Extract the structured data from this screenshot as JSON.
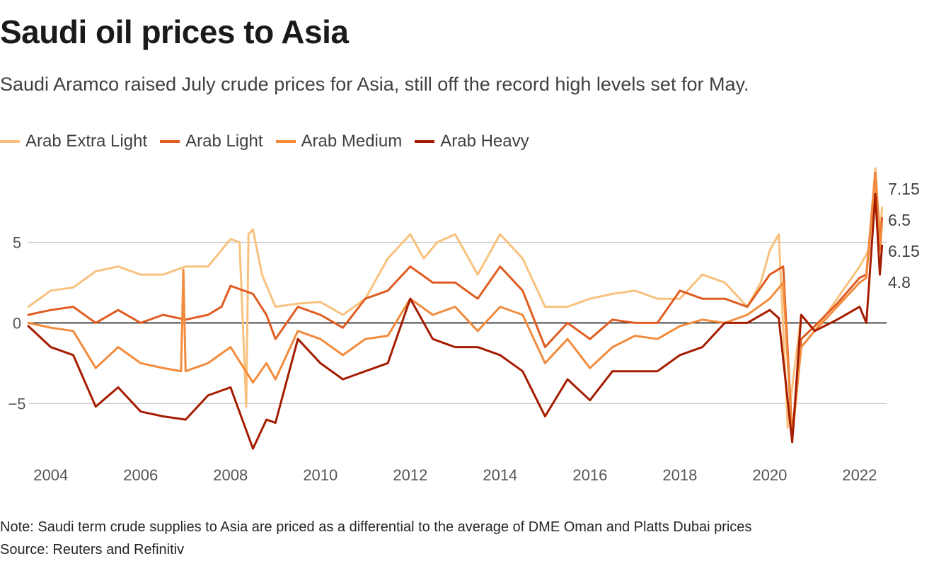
{
  "title": "Saudi oil prices to Asia",
  "subtitle": "Saudi Aramco raised July crude prices for Asia, still off the record high levels set for May.",
  "note": "Note: Saudi term crude supplies to Asia are priced as a differential to the average of DME Oman and Platts Dubai prices",
  "source": "Source: Reuters and Refinitiv",
  "chart_data": {
    "type": "line",
    "title": "Saudi oil prices to Asia",
    "xlabel": "",
    "ylabel": "",
    "xlim": [
      2003.5,
      2022.6
    ],
    "ylim": [
      -8.5,
      9.5
    ],
    "x_ticks": [
      2004,
      2006,
      2008,
      2010,
      2012,
      2014,
      2016,
      2018,
      2020,
      2022
    ],
    "x_tick_labels": [
      "2004",
      "2006",
      "2008",
      "2010",
      "2012",
      "2014",
      "2016",
      "2018",
      "2020",
      "2022"
    ],
    "y_ticks": [
      -5,
      0,
      5
    ],
    "y_tick_labels": [
      "−5",
      "0",
      "5"
    ],
    "grid": true,
    "legend_position": "top-left",
    "end_labels": [
      "7.15",
      "6.5",
      "6.15",
      "4.8"
    ],
    "series": [
      {
        "name": "Arab Extra Light",
        "color": "#f8c27e",
        "x": [
          2003.5,
          2004.0,
          2004.5,
          2005.0,
          2005.5,
          2006.0,
          2006.5,
          2007.0,
          2007.5,
          2008.0,
          2008.2,
          2008.35,
          2008.4,
          2008.5,
          2008.7,
          2009.0,
          2009.5,
          2010.0,
          2010.5,
          2011.0,
          2011.5,
          2012.0,
          2012.3,
          2012.6,
          2013.0,
          2013.5,
          2014.0,
          2014.5,
          2015.0,
          2015.5,
          2016.0,
          2016.5,
          2017.0,
          2017.5,
          2018.0,
          2018.5,
          2019.0,
          2019.5,
          2019.8,
          2020.0,
          2020.2,
          2020.4,
          2020.5,
          2020.7,
          2021.0,
          2021.5,
          2022.0,
          2022.2,
          2022.35,
          2022.45,
          2022.5
        ],
        "values": [
          1.0,
          2.0,
          2.2,
          3.2,
          3.5,
          3.0,
          3.0,
          3.5,
          3.5,
          5.2,
          5.0,
          -5.2,
          5.5,
          5.8,
          3.0,
          1.0,
          1.2,
          1.3,
          0.5,
          1.5,
          4.0,
          5.5,
          4.0,
          5.0,
          5.5,
          3.0,
          5.5,
          4.0,
          1.0,
          1.0,
          1.5,
          1.8,
          2.0,
          1.5,
          1.5,
          3.0,
          2.5,
          1.0,
          2.5,
          4.5,
          5.5,
          -6.5,
          -4.0,
          0.5,
          -0.5,
          1.5,
          3.5,
          4.5,
          9.6,
          5.5,
          7.15
        ]
      },
      {
        "name": "Arab Light",
        "color": "#e05c20",
        "x": [
          2003.5,
          2004.0,
          2004.5,
          2005.0,
          2005.5,
          2006.0,
          2006.5,
          2007.0,
          2007.5,
          2007.8,
          2008.0,
          2008.5,
          2008.8,
          2009.0,
          2009.5,
          2010.0,
          2010.5,
          2011.0,
          2011.5,
          2012.0,
          2012.5,
          2013.0,
          2013.5,
          2014.0,
          2014.5,
          2015.0,
          2015.5,
          2016.0,
          2016.5,
          2017.0,
          2017.5,
          2018.0,
          2018.5,
          2019.0,
          2019.5,
          2020.0,
          2020.3,
          2020.5,
          2020.7,
          2021.0,
          2021.5,
          2022.0,
          2022.15,
          2022.35,
          2022.45,
          2022.5
        ],
        "values": [
          0.5,
          0.8,
          1.0,
          0.0,
          0.8,
          0.0,
          0.5,
          0.2,
          0.5,
          1.0,
          2.3,
          1.8,
          0.5,
          -1.0,
          1.0,
          0.5,
          -0.3,
          1.5,
          2.0,
          3.5,
          2.5,
          2.5,
          1.5,
          3.5,
          2.0,
          -1.5,
          0.0,
          -1.0,
          0.2,
          0.0,
          0.0,
          2.0,
          1.5,
          1.5,
          1.0,
          3.0,
          3.5,
          -7.0,
          -1.0,
          -0.2,
          1.2,
          2.8,
          3.0,
          9.3,
          5.0,
          6.5
        ]
      },
      {
        "name": "Arab Medium",
        "color": "#f28b3c",
        "x": [
          2003.5,
          2004.0,
          2004.5,
          2005.0,
          2005.5,
          2006.0,
          2006.5,
          2006.9,
          2006.95,
          2007.0,
          2007.5,
          2008.0,
          2008.5,
          2008.8,
          2009.0,
          2009.5,
          2010.0,
          2010.5,
          2011.0,
          2011.5,
          2012.0,
          2012.5,
          2013.0,
          2013.5,
          2014.0,
          2014.5,
          2015.0,
          2015.5,
          2016.0,
          2016.5,
          2017.0,
          2017.5,
          2018.0,
          2018.5,
          2019.0,
          2019.5,
          2020.0,
          2020.3,
          2020.5,
          2020.7,
          2021.0,
          2021.5,
          2022.0,
          2022.15,
          2022.35,
          2022.45,
          2022.5
        ],
        "values": [
          0.0,
          -0.3,
          -0.5,
          -2.8,
          -1.5,
          -2.5,
          -2.8,
          -3.0,
          3.3,
          -3.0,
          -2.5,
          -1.5,
          -3.7,
          -2.5,
          -3.5,
          -0.5,
          -1.0,
          -2.0,
          -1.0,
          -0.8,
          1.5,
          0.5,
          1.0,
          -0.5,
          1.0,
          0.5,
          -2.5,
          -1.0,
          -2.8,
          -1.5,
          -0.8,
          -1.0,
          -0.2,
          0.2,
          0.0,
          0.5,
          1.5,
          2.5,
          -7.2,
          -1.5,
          -0.5,
          1.0,
          2.5,
          2.8,
          9.2,
          4.5,
          6.15
        ]
      },
      {
        "name": "Arab Heavy",
        "color": "#a51c00",
        "x": [
          2003.5,
          2004.0,
          2004.5,
          2005.0,
          2005.5,
          2006.0,
          2006.5,
          2007.0,
          2007.5,
          2008.0,
          2008.5,
          2008.8,
          2009.0,
          2009.5,
          2010.0,
          2010.5,
          2011.0,
          2011.5,
          2012.0,
          2012.5,
          2013.0,
          2013.5,
          2014.0,
          2014.5,
          2015.0,
          2015.5,
          2016.0,
          2016.5,
          2017.0,
          2017.5,
          2018.0,
          2018.5,
          2019.0,
          2019.5,
          2020.0,
          2020.2,
          2020.5,
          2020.7,
          2021.0,
          2021.5,
          2022.0,
          2022.15,
          2022.35,
          2022.45,
          2022.5
        ],
        "values": [
          -0.2,
          -1.5,
          -2.0,
          -5.2,
          -4.0,
          -5.5,
          -5.8,
          -6.0,
          -4.5,
          -4.0,
          -7.8,
          -6.0,
          -6.2,
          -1.0,
          -2.5,
          -3.5,
          -3.0,
          -2.5,
          1.5,
          -1.0,
          -1.5,
          -1.5,
          -2.0,
          -3.0,
          -5.8,
          -3.5,
          -4.8,
          -3.0,
          -3.0,
          -3.0,
          -2.0,
          -1.5,
          0.0,
          0.0,
          0.8,
          0.3,
          -7.4,
          0.5,
          -0.5,
          0.2,
          1.0,
          0.0,
          8.0,
          3.0,
          4.8
        ]
      }
    ]
  }
}
